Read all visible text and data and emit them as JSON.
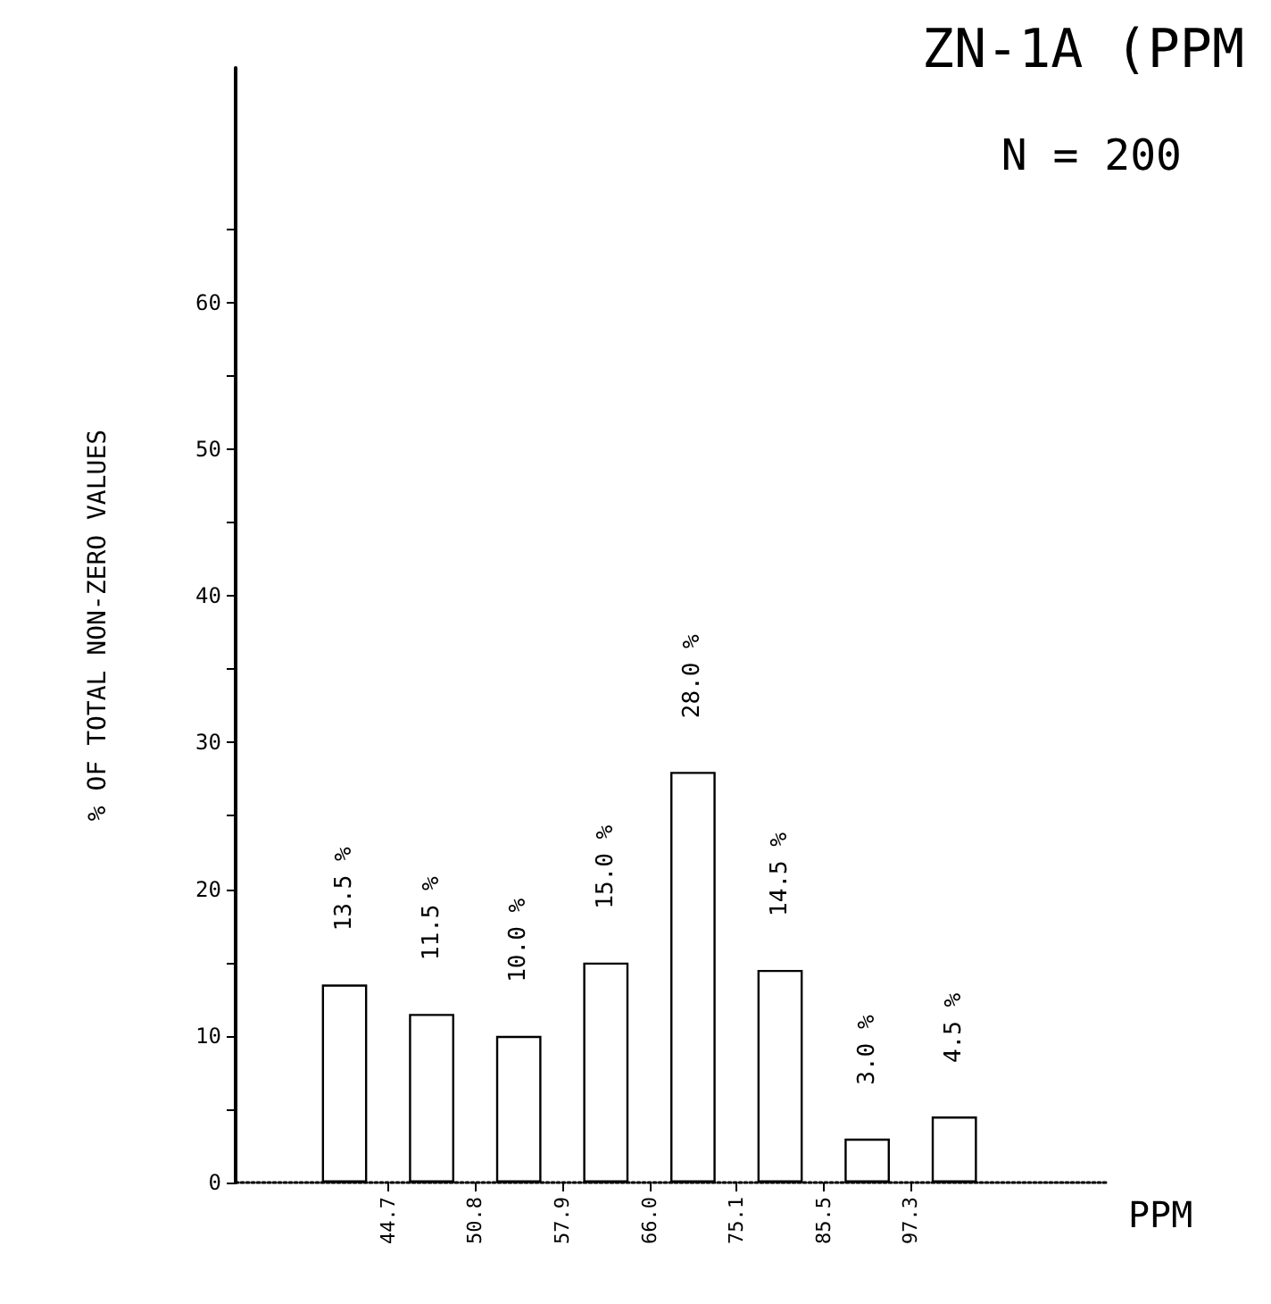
{
  "chart_data": {
    "type": "bar",
    "title": "ZN-1A (PPM",
    "xlabel": "PPM",
    "ylabel": "% OF TOTAL NON-ZERO VALUES",
    "annotations": [
      "N = 200"
    ],
    "categories": [
      null,
      null,
      null,
      "44.7",
      null,
      "50.8",
      null,
      "57.9",
      null,
      "66.0",
      null,
      "75.1",
      null,
      "85.5",
      null,
      "97.3",
      null,
      null,
      null,
      null
    ],
    "values": [
      null,
      null,
      13.5,
      null,
      11.5,
      null,
      10.0,
      null,
      15.0,
      null,
      28.0,
      null,
      14.5,
      null,
      3.0,
      null,
      4.5,
      null,
      null,
      null
    ],
    "value_labels": [
      null,
      null,
      "13.5 %",
      null,
      "11.5 %",
      null,
      "10.0 %",
      null,
      "15.0 %",
      null,
      "28.0 %",
      null,
      "14.5 %",
      null,
      "3.0 %",
      null,
      "4.5 %",
      null,
      null,
      null
    ],
    "color": "#ffffff",
    "ylim": [
      0,
      76
    ],
    "yticks": [
      0,
      {
        "value": 5,
        "label": null
      },
      10,
      {
        "value": 15,
        "label": null
      },
      20,
      {
        "value": 25,
        "label": null
      },
      30,
      {
        "value": 35,
        "label": null
      },
      40,
      {
        "value": 45,
        "label": null
      },
      50,
      {
        "value": 55,
        "label": null
      },
      60,
      {
        "value": 65,
        "label": null
      }
    ],
    "tick_labels": true
  }
}
